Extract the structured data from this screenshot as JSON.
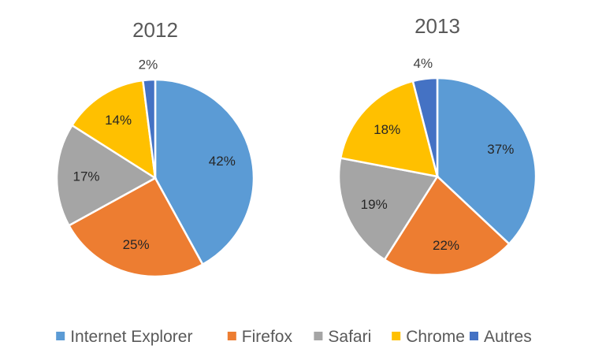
{
  "chart_data": [
    {
      "type": "pie",
      "title": "2012",
      "categories": [
        "Internet Explorer",
        "Firefox",
        "Safari",
        "Chrome",
        "Autres"
      ],
      "values": [
        42,
        25,
        17,
        14,
        2
      ],
      "labels": [
        "42%",
        "25%",
        "17%",
        "14%",
        "2%"
      ]
    },
    {
      "type": "pie",
      "title": "2013",
      "categories": [
        "Internet Explorer",
        "Firefox",
        "Safari",
        "Chrome",
        "Autres"
      ],
      "values": [
        37,
        22,
        19,
        18,
        4
      ],
      "labels": [
        "37%",
        "22%",
        "19%",
        "18%",
        "4%"
      ]
    }
  ],
  "legend": {
    "placement": "bottom",
    "items": [
      "Internet Explorer",
      "Firefox",
      "Safari",
      "Chrome",
      "Autres"
    ]
  },
  "colors": [
    "#5B9BD5",
    "#ED7D31",
    "#A5A5A5",
    "#FFC000",
    "#4472C4"
  ]
}
